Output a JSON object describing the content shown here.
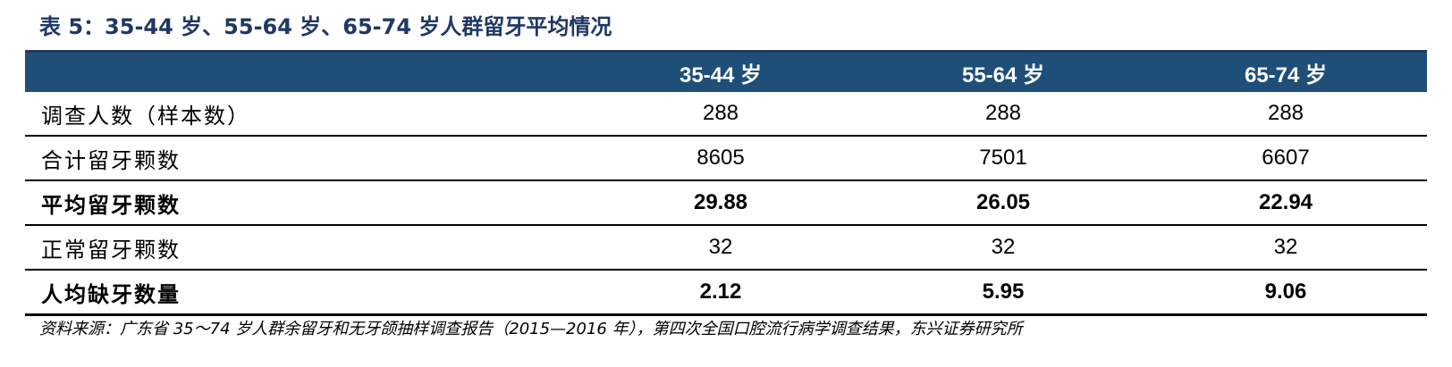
{
  "title": "表 5：35-44 岁、55-64 岁、65-74 岁人群留牙平均情况",
  "table": {
    "headers": [
      "",
      "35-44 岁",
      "55-64 岁",
      "65-74 岁"
    ],
    "rows": [
      {
        "label": "调查人数（样本数）",
        "values": [
          "288",
          "288",
          "288"
        ],
        "bold": false
      },
      {
        "label": "合计留牙颗数",
        "values": [
          "8605",
          "7501",
          "6607"
        ],
        "bold": false
      },
      {
        "label": "平均留牙颗数",
        "values": [
          "29.88",
          "26.05",
          "22.94"
        ],
        "bold": true
      },
      {
        "label": "正常留牙颗数",
        "values": [
          "32",
          "32",
          "32"
        ],
        "bold": false
      },
      {
        "label": "人均缺牙数量",
        "values": [
          "2.12",
          "5.95",
          "9.06"
        ],
        "bold": true
      }
    ]
  },
  "source": "资料来源：广东省 35～74 岁人群余留牙和无牙颌抽样调查报告（2015—2016 年），第四次全国口腔流行病学调查结果，东兴证券研究所",
  "colors": {
    "title": "#1f3864",
    "header_bg": "#1f4e79",
    "header_text": "#ffffff"
  }
}
